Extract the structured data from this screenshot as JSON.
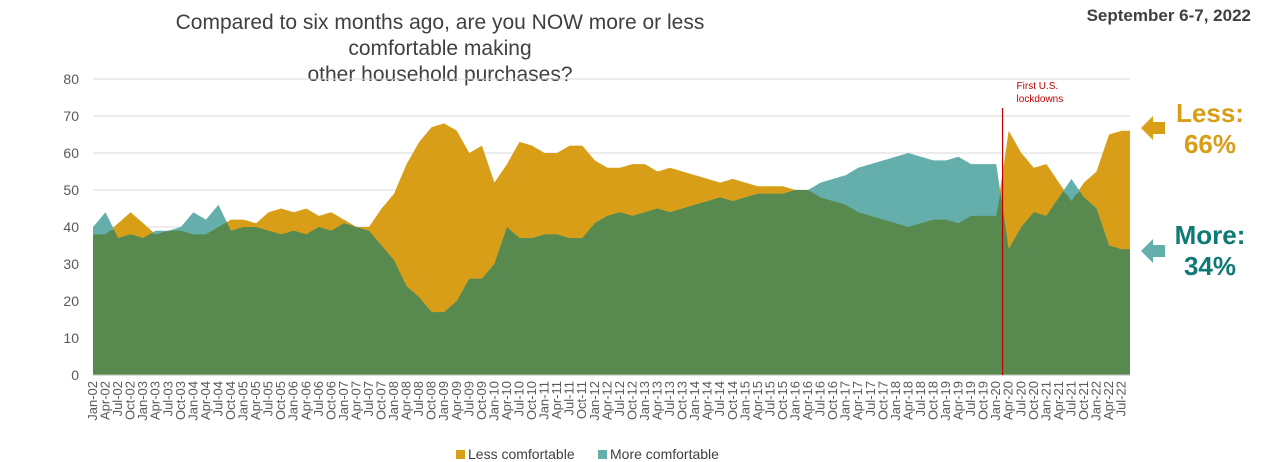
{
  "header": {
    "title_line1": "Compared to six months ago, are you NOW more or less comfortable making",
    "title_line2": "other household purchases?",
    "date": "September 6-7, 2022"
  },
  "callouts": {
    "less_label": "Less:",
    "less_value": "66%",
    "more_label": "More:",
    "more_value": "34%"
  },
  "colors": {
    "less": "#D89E17",
    "more": "#64AFAB",
    "base": "#588A4F",
    "event_line": "#C00000",
    "less_text": "#D89E17",
    "more_text": "#0E7A73"
  },
  "chart_data": {
    "type": "area",
    "title": "Compared to six months ago, are you NOW more or less comfortable making other household purchases?",
    "ylim": [
      0,
      80
    ],
    "yticks": [
      0,
      10,
      20,
      30,
      40,
      50,
      60,
      70,
      80
    ],
    "grid": true,
    "legend_position": "bottom",
    "x_tick_labels": [
      "Jan-02",
      "Apr-02",
      "Jul-02",
      "Oct-02",
      "Jan-03",
      "Apr-03",
      "Jul-03",
      "Oct-03",
      "Jan-04",
      "Apr-04",
      "Jul-04",
      "Oct-04",
      "Jan-05",
      "Apr-05",
      "Jul-05",
      "Oct-05",
      "Jan-06",
      "Apr-06",
      "Jul-06",
      "Oct-06",
      "Jan-07",
      "Apr-07",
      "Jul-07",
      "Oct-07",
      "Jan-08",
      "Apr-08",
      "Jul-08",
      "Oct-08",
      "Jan-09",
      "Apr-09",
      "Jul-09",
      "Oct-09",
      "Jan-10",
      "Apr-10",
      "Jul-10",
      "Oct-10",
      "Jan-11",
      "Apr-11",
      "Jul-11",
      "Oct-11",
      "Jan-12",
      "Apr-12",
      "Jul-12",
      "Oct-12",
      "Jan-13",
      "Apr-13",
      "Jul-13",
      "Oct-13",
      "Jan-14",
      "Apr-14",
      "Jul-14",
      "Oct-14",
      "Jan-15",
      "Apr-15",
      "Jul-15",
      "Oct-15",
      "Jan-16",
      "Apr-16",
      "Jul-16",
      "Oct-16",
      "Jan-17",
      "Apr-17",
      "Jul-17",
      "Oct-17",
      "Jan-18",
      "Apr-18",
      "Jul-18",
      "Oct-18",
      "Jan-19",
      "Apr-19",
      "Jul-19",
      "Oct-19",
      "Jan-20",
      "Apr-20",
      "Jul-20",
      "Oct-20",
      "Jan-21",
      "Apr-21",
      "Jul-21",
      "Oct-21",
      "Jan-22",
      "Apr-22",
      "Jul-22"
    ],
    "annotation": {
      "label_line1": "First U.S.",
      "label_line2": "lockdowns",
      "x": "Mar-20"
    },
    "series": [
      {
        "name": "Less comfortable",
        "points": [
          [
            "Jan-02",
            38
          ],
          [
            "Apr-02",
            38
          ],
          [
            "Jul-02",
            41
          ],
          [
            "Oct-02",
            44
          ],
          [
            "Jan-03",
            41
          ],
          [
            "Apr-03",
            38
          ],
          [
            "Jul-03",
            39
          ],
          [
            "Oct-03",
            39
          ],
          [
            "Jan-04",
            38
          ],
          [
            "Apr-04",
            38
          ],
          [
            "Jul-04",
            40
          ],
          [
            "Oct-04",
            42
          ],
          [
            "Jan-05",
            42
          ],
          [
            "Apr-05",
            41
          ],
          [
            "Jul-05",
            44
          ],
          [
            "Oct-05",
            45
          ],
          [
            "Jan-06",
            44
          ],
          [
            "Apr-06",
            45
          ],
          [
            "Jul-06",
            43
          ],
          [
            "Oct-06",
            44
          ],
          [
            "Jan-07",
            42
          ],
          [
            "Apr-07",
            40
          ],
          [
            "Jul-07",
            40
          ],
          [
            "Oct-07",
            45
          ],
          [
            "Jan-08",
            49
          ],
          [
            "Apr-08",
            57
          ],
          [
            "Jul-08",
            63
          ],
          [
            "Oct-08",
            67
          ],
          [
            "Jan-09",
            68
          ],
          [
            "Apr-09",
            66
          ],
          [
            "Jul-09",
            60
          ],
          [
            "Oct-09",
            62
          ],
          [
            "Jan-10",
            52
          ],
          [
            "Apr-10",
            57
          ],
          [
            "Jul-10",
            63
          ],
          [
            "Oct-10",
            62
          ],
          [
            "Jan-11",
            60
          ],
          [
            "Apr-11",
            60
          ],
          [
            "Jul-11",
            62
          ],
          [
            "Oct-11",
            62
          ],
          [
            "Jan-12",
            58
          ],
          [
            "Apr-12",
            56
          ],
          [
            "Jul-12",
            56
          ],
          [
            "Oct-12",
            57
          ],
          [
            "Jan-13",
            57
          ],
          [
            "Apr-13",
            55
          ],
          [
            "Jul-13",
            56
          ],
          [
            "Oct-13",
            55
          ],
          [
            "Jan-14",
            54
          ],
          [
            "Apr-14",
            53
          ],
          [
            "Jul-14",
            52
          ],
          [
            "Oct-14",
            53
          ],
          [
            "Jan-15",
            52
          ],
          [
            "Apr-15",
            51
          ],
          [
            "Jul-15",
            51
          ],
          [
            "Oct-15",
            51
          ],
          [
            "Jan-16",
            50
          ],
          [
            "Apr-16",
            50
          ],
          [
            "Jul-16",
            48
          ],
          [
            "Oct-16",
            47
          ],
          [
            "Jan-17",
            46
          ],
          [
            "Apr-17",
            44
          ],
          [
            "Jul-17",
            43
          ],
          [
            "Oct-17",
            42
          ],
          [
            "Jan-18",
            41
          ],
          [
            "Apr-18",
            40
          ],
          [
            "Jul-18",
            41
          ],
          [
            "Oct-18",
            42
          ],
          [
            "Jan-19",
            42
          ],
          [
            "Apr-19",
            41
          ],
          [
            "Jul-19",
            43
          ],
          [
            "Oct-19",
            43
          ],
          [
            "Jan-20",
            43
          ],
          [
            "Apr-20",
            66
          ],
          [
            "Jul-20",
            60
          ],
          [
            "Oct-20",
            56
          ],
          [
            "Jan-21",
            57
          ],
          [
            "Apr-21",
            52
          ],
          [
            "Jul-21",
            47
          ],
          [
            "Oct-21",
            52
          ],
          [
            "Jan-22",
            55
          ],
          [
            "Apr-22",
            65
          ],
          [
            "Jul-22",
            66
          ]
        ]
      },
      {
        "name": "More comfortable",
        "points": [
          [
            "Jan-02",
            40
          ],
          [
            "Apr-02",
            44
          ],
          [
            "Jul-02",
            37
          ],
          [
            "Oct-02",
            38
          ],
          [
            "Jan-03",
            37
          ],
          [
            "Apr-03",
            39
          ],
          [
            "Jul-03",
            39
          ],
          [
            "Oct-03",
            40
          ],
          [
            "Jan-04",
            44
          ],
          [
            "Apr-04",
            42
          ],
          [
            "Jul-04",
            46
          ],
          [
            "Oct-04",
            39
          ],
          [
            "Jan-05",
            40
          ],
          [
            "Apr-05",
            40
          ],
          [
            "Jul-05",
            39
          ],
          [
            "Oct-05",
            38
          ],
          [
            "Jan-06",
            39
          ],
          [
            "Apr-06",
            38
          ],
          [
            "Jul-06",
            40
          ],
          [
            "Oct-06",
            39
          ],
          [
            "Jan-07",
            41
          ],
          [
            "Apr-07",
            40
          ],
          [
            "Jul-07",
            39
          ],
          [
            "Oct-07",
            35
          ],
          [
            "Jan-08",
            31
          ],
          [
            "Apr-08",
            24
          ],
          [
            "Jul-08",
            21
          ],
          [
            "Oct-08",
            17
          ],
          [
            "Jan-09",
            17
          ],
          [
            "Apr-09",
            20
          ],
          [
            "Jul-09",
            26
          ],
          [
            "Oct-09",
            26
          ],
          [
            "Jan-10",
            30
          ],
          [
            "Apr-10",
            40
          ],
          [
            "Jul-10",
            37
          ],
          [
            "Oct-10",
            37
          ],
          [
            "Jan-11",
            38
          ],
          [
            "Apr-11",
            38
          ],
          [
            "Jul-11",
            37
          ],
          [
            "Oct-11",
            37
          ],
          [
            "Jan-12",
            41
          ],
          [
            "Apr-12",
            43
          ],
          [
            "Jul-12",
            44
          ],
          [
            "Oct-12",
            43
          ],
          [
            "Jan-13",
            44
          ],
          [
            "Apr-13",
            45
          ],
          [
            "Jul-13",
            44
          ],
          [
            "Oct-13",
            45
          ],
          [
            "Jan-14",
            46
          ],
          [
            "Apr-14",
            47
          ],
          [
            "Jul-14",
            48
          ],
          [
            "Oct-14",
            47
          ],
          [
            "Jan-15",
            48
          ],
          [
            "Apr-15",
            49
          ],
          [
            "Jul-15",
            49
          ],
          [
            "Oct-15",
            49
          ],
          [
            "Jan-16",
            50
          ],
          [
            "Apr-16",
            50
          ],
          [
            "Jul-16",
            52
          ],
          [
            "Oct-16",
            53
          ],
          [
            "Jan-17",
            54
          ],
          [
            "Apr-17",
            56
          ],
          [
            "Jul-17",
            57
          ],
          [
            "Oct-17",
            58
          ],
          [
            "Jan-18",
            59
          ],
          [
            "Apr-18",
            60
          ],
          [
            "Jul-18",
            59
          ],
          [
            "Oct-18",
            58
          ],
          [
            "Jan-19",
            58
          ],
          [
            "Apr-19",
            59
          ],
          [
            "Jul-19",
            57
          ],
          [
            "Oct-19",
            57
          ],
          [
            "Jan-20",
            57
          ],
          [
            "Apr-20",
            34
          ],
          [
            "Jul-20",
            40
          ],
          [
            "Oct-20",
            44
          ],
          [
            "Jan-21",
            43
          ],
          [
            "Apr-21",
            48
          ],
          [
            "Jul-21",
            53
          ],
          [
            "Oct-21",
            48
          ],
          [
            "Jan-22",
            45
          ],
          [
            "Apr-22",
            35
          ],
          [
            "Jul-22",
            34
          ]
        ]
      }
    ]
  }
}
